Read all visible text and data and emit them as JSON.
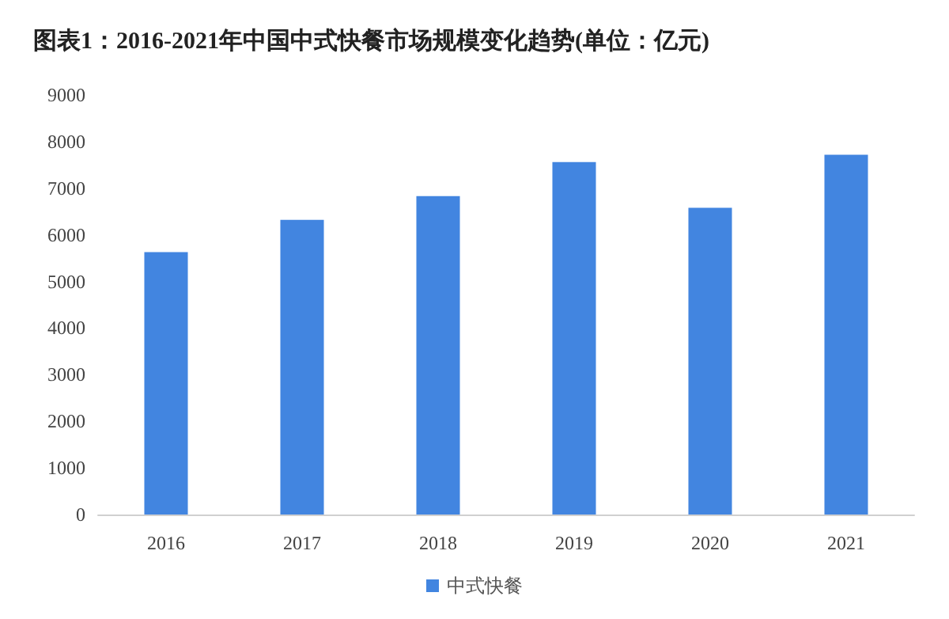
{
  "chart_data": {
    "type": "bar",
    "title": "图表1：2016-2021年中国中式快餐市场规模变化趋势(单位：亿元)",
    "categories": [
      "2016",
      "2017",
      "2018",
      "2019",
      "2020",
      "2021"
    ],
    "series": [
      {
        "name": "中式快餐",
        "color": "#4285e0",
        "values": [
          5630,
          6320,
          6830,
          7560,
          6580,
          7720
        ]
      }
    ],
    "ylim": [
      0,
      9000
    ],
    "yticks": [
      0,
      1000,
      2000,
      3000,
      4000,
      5000,
      6000,
      7000,
      8000,
      9000
    ],
    "grid": false,
    "legend": "bottom"
  }
}
